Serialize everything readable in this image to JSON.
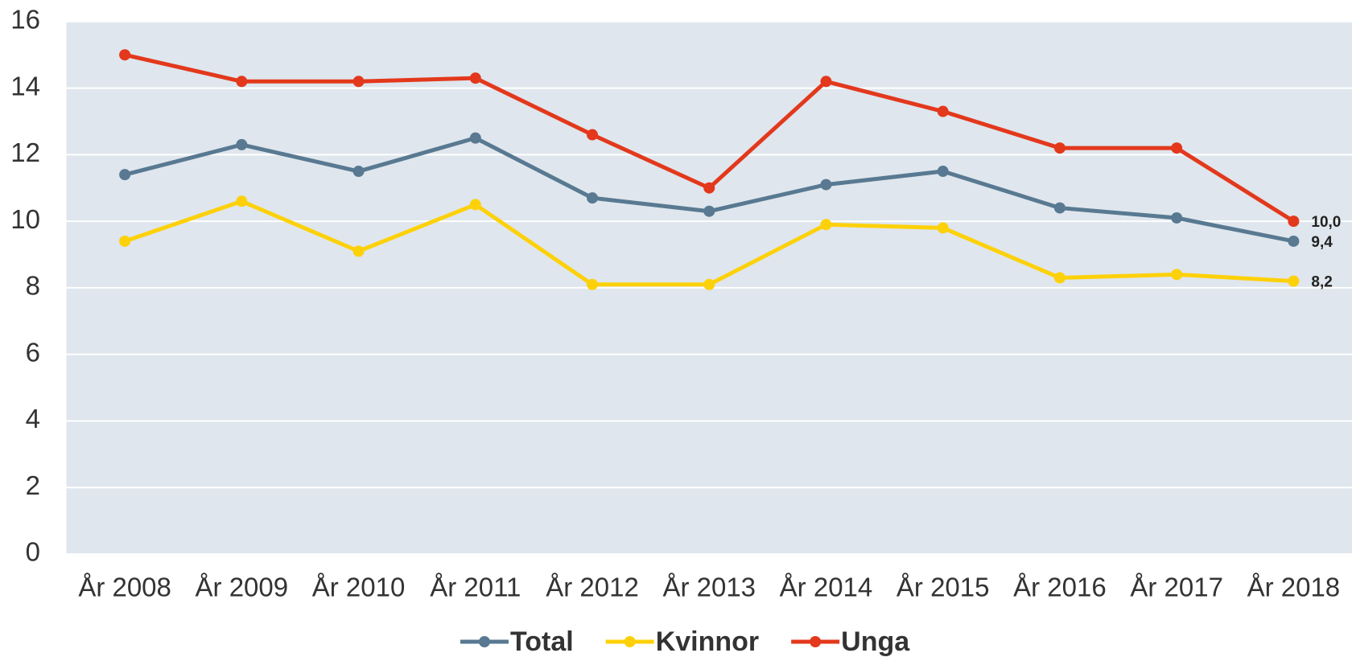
{
  "chart_data": {
    "type": "line",
    "categories": [
      "År 2008",
      "År 2009",
      "År 2010",
      "År 2011",
      "År 2012",
      "År 2013",
      "År 2014",
      "År 2015",
      "År 2016",
      "År 2017",
      "År 2018"
    ],
    "series": [
      {
        "name": "Total",
        "color": "#587991",
        "values": [
          11.4,
          12.3,
          11.5,
          12.5,
          10.7,
          10.3,
          11.1,
          11.5,
          10.4,
          10.1,
          9.4
        ],
        "value_labels": [
          null,
          null,
          null,
          null,
          null,
          null,
          null,
          null,
          null,
          null,
          "9,4"
        ]
      },
      {
        "name": "Kvinnor",
        "color": "#fdd10a",
        "values": [
          9.4,
          10.6,
          9.1,
          10.5,
          8.1,
          8.1,
          9.9,
          9.8,
          8.3,
          8.4,
          8.2
        ],
        "value_labels": [
          null,
          null,
          null,
          null,
          null,
          null,
          null,
          null,
          null,
          null,
          "8,2"
        ]
      },
      {
        "name": "Unga",
        "color": "#e3381c",
        "values": [
          15.0,
          14.2,
          14.2,
          14.3,
          12.6,
          11.0,
          14.2,
          13.3,
          12.2,
          12.2,
          10.0
        ],
        "value_labels": [
          null,
          null,
          null,
          null,
          null,
          null,
          null,
          null,
          null,
          null,
          "10,0"
        ]
      }
    ],
    "ylim": [
      0,
      16
    ],
    "yticks": [
      0,
      2,
      4,
      6,
      8,
      10,
      12,
      14,
      16
    ],
    "grid": true,
    "legend": "bottom"
  }
}
